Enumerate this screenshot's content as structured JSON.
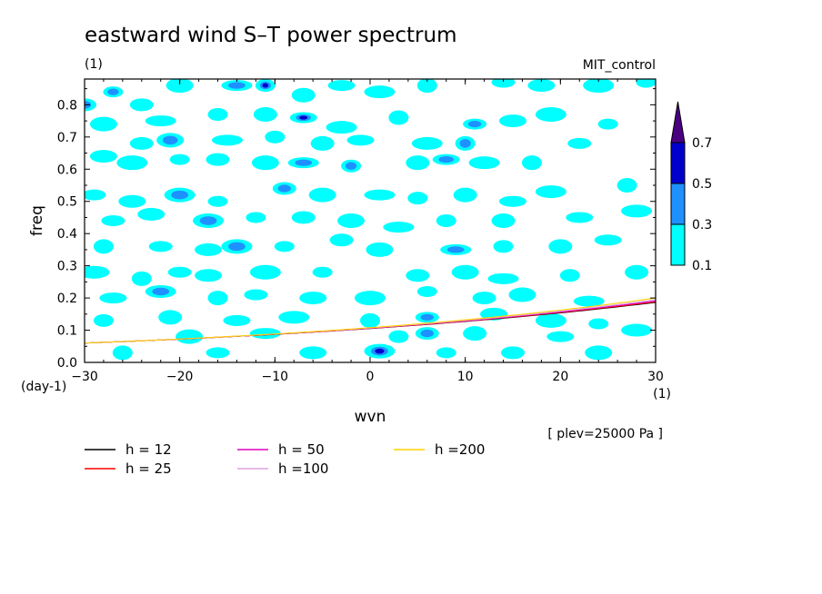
{
  "title": "eastward wind S–T power spectrum",
  "subtitle_left": "(1)",
  "subtitle_right": "MIT_control",
  "plev_note": "[ plev=25000 Pa ]",
  "chart_data": {
    "type": "heatmap",
    "xlabel": "wvn",
    "ylabel": "freq",
    "x_units": "(1)",
    "y_units": "(day-1)",
    "xlim": [
      -30,
      30
    ],
    "ylim": [
      0,
      0.88
    ],
    "xticks": [
      -30,
      -20,
      -10,
      0,
      10,
      20,
      30
    ],
    "xtick_labels": [
      "−30",
      "−20",
      "−10",
      "0",
      "10",
      "20",
      "30"
    ],
    "yticks": [
      0,
      0.1,
      0.2,
      0.3,
      0.4,
      0.5,
      0.6,
      0.7,
      0.8
    ],
    "ytick_labels": [
      "0.0",
      "0.1",
      "0.2",
      "0.3",
      "0.4",
      "0.5",
      "0.6",
      "0.7",
      "0.8"
    ],
    "colorbar": {
      "levels": [
        0.1,
        0.3,
        0.5,
        0.7
      ],
      "labels": [
        "0.1",
        "0.3",
        "0.5",
        "0.7"
      ],
      "colors": [
        "#00ffff",
        "#1e90ff",
        "#0000cd",
        "#4b0082"
      ]
    },
    "dispersion_curves": [
      {
        "name": "h = 12",
        "h": 12,
        "color": "#000000"
      },
      {
        "name": "h = 25",
        "h": 25,
        "color": "#ff0000"
      },
      {
        "name": "h = 50",
        "h": 50,
        "color": "#e000c0"
      },
      {
        "name": "h =100",
        "h": 100,
        "color": "#e0a0e0"
      },
      {
        "name": "h =200",
        "h": 200,
        "color": "#ffd000"
      }
    ],
    "patches": [
      {
        "x": -27,
        "y": 0.84,
        "level": 2
      },
      {
        "x": -24,
        "y": 0.8,
        "level": 1
      },
      {
        "x": -20,
        "y": 0.86,
        "level": 1
      },
      {
        "x": -14,
        "y": 0.86,
        "level": 2
      },
      {
        "x": -11,
        "y": 0.86,
        "level": 3
      },
      {
        "x": -7,
        "y": 0.83,
        "level": 1
      },
      {
        "x": -3,
        "y": 0.86,
        "level": 1
      },
      {
        "x": 1,
        "y": 0.84,
        "level": 1
      },
      {
        "x": 6,
        "y": 0.86,
        "level": 1
      },
      {
        "x": 14,
        "y": 0.87,
        "level": 1
      },
      {
        "x": 18,
        "y": 0.86,
        "level": 1
      },
      {
        "x": 24,
        "y": 0.86,
        "level": 1
      },
      {
        "x": 29,
        "y": 0.87,
        "level": 1
      },
      {
        "x": -30,
        "y": 0.8,
        "level": 2
      },
      {
        "x": -28,
        "y": 0.74,
        "level": 1
      },
      {
        "x": -22,
        "y": 0.75,
        "level": 1
      },
      {
        "x": -16,
        "y": 0.77,
        "level": 1
      },
      {
        "x": -11,
        "y": 0.77,
        "level": 1
      },
      {
        "x": -7,
        "y": 0.76,
        "level": 3
      },
      {
        "x": -3,
        "y": 0.73,
        "level": 1
      },
      {
        "x": 3,
        "y": 0.76,
        "level": 1
      },
      {
        "x": 11,
        "y": 0.74,
        "level": 2
      },
      {
        "x": 15,
        "y": 0.75,
        "level": 1
      },
      {
        "x": 19,
        "y": 0.77,
        "level": 1
      },
      {
        "x": 25,
        "y": 0.74,
        "level": 1
      },
      {
        "x": -24,
        "y": 0.68,
        "level": 1
      },
      {
        "x": -21,
        "y": 0.69,
        "level": 2
      },
      {
        "x": -15,
        "y": 0.69,
        "level": 1
      },
      {
        "x": -10,
        "y": 0.7,
        "level": 1
      },
      {
        "x": -5,
        "y": 0.68,
        "level": 1
      },
      {
        "x": -1,
        "y": 0.69,
        "level": 1
      },
      {
        "x": 6,
        "y": 0.68,
        "level": 1
      },
      {
        "x": 10,
        "y": 0.68,
        "level": 2
      },
      {
        "x": 22,
        "y": 0.68,
        "level": 1
      },
      {
        "x": -28,
        "y": 0.64,
        "level": 1
      },
      {
        "x": -25,
        "y": 0.62,
        "level": 1
      },
      {
        "x": -20,
        "y": 0.63,
        "level": 1
      },
      {
        "x": -16,
        "y": 0.63,
        "level": 1
      },
      {
        "x": -11,
        "y": 0.62,
        "level": 1
      },
      {
        "x": -7,
        "y": 0.62,
        "level": 2
      },
      {
        "x": -2,
        "y": 0.61,
        "level": 2
      },
      {
        "x": 5,
        "y": 0.62,
        "level": 1
      },
      {
        "x": 8,
        "y": 0.63,
        "level": 2
      },
      {
        "x": 12,
        "y": 0.62,
        "level": 1
      },
      {
        "x": 17,
        "y": 0.62,
        "level": 1
      },
      {
        "x": -29,
        "y": 0.52,
        "level": 1
      },
      {
        "x": -25,
        "y": 0.5,
        "level": 1
      },
      {
        "x": -20,
        "y": 0.52,
        "level": 2
      },
      {
        "x": -16,
        "y": 0.5,
        "level": 1
      },
      {
        "x": -9,
        "y": 0.54,
        "level": 2
      },
      {
        "x": -5,
        "y": 0.52,
        "level": 1
      },
      {
        "x": 1,
        "y": 0.52,
        "level": 1
      },
      {
        "x": 5,
        "y": 0.51,
        "level": 1
      },
      {
        "x": 10,
        "y": 0.52,
        "level": 1
      },
      {
        "x": 15,
        "y": 0.5,
        "level": 1
      },
      {
        "x": 19,
        "y": 0.53,
        "level": 1
      },
      {
        "x": 27,
        "y": 0.55,
        "level": 1
      },
      {
        "x": -27,
        "y": 0.44,
        "level": 1
      },
      {
        "x": -23,
        "y": 0.46,
        "level": 1
      },
      {
        "x": -17,
        "y": 0.44,
        "level": 2
      },
      {
        "x": -12,
        "y": 0.45,
        "level": 1
      },
      {
        "x": -7,
        "y": 0.45,
        "level": 1
      },
      {
        "x": -2,
        "y": 0.44,
        "level": 1
      },
      {
        "x": 3,
        "y": 0.42,
        "level": 1
      },
      {
        "x": 8,
        "y": 0.44,
        "level": 1
      },
      {
        "x": 14,
        "y": 0.44,
        "level": 1
      },
      {
        "x": 22,
        "y": 0.45,
        "level": 1
      },
      {
        "x": 28,
        "y": 0.47,
        "level": 1
      },
      {
        "x": -28,
        "y": 0.36,
        "level": 1
      },
      {
        "x": -22,
        "y": 0.36,
        "level": 1
      },
      {
        "x": -17,
        "y": 0.35,
        "level": 1
      },
      {
        "x": -14,
        "y": 0.36,
        "level": 2
      },
      {
        "x": -9,
        "y": 0.36,
        "level": 1
      },
      {
        "x": -3,
        "y": 0.38,
        "level": 1
      },
      {
        "x": 1,
        "y": 0.35,
        "level": 1
      },
      {
        "x": 9,
        "y": 0.35,
        "level": 2
      },
      {
        "x": 14,
        "y": 0.36,
        "level": 1
      },
      {
        "x": 20,
        "y": 0.36,
        "level": 1
      },
      {
        "x": 25,
        "y": 0.38,
        "level": 1
      },
      {
        "x": -29,
        "y": 0.28,
        "level": 1
      },
      {
        "x": -24,
        "y": 0.26,
        "level": 1
      },
      {
        "x": -20,
        "y": 0.28,
        "level": 1
      },
      {
        "x": -17,
        "y": 0.27,
        "level": 1
      },
      {
        "x": -11,
        "y": 0.28,
        "level": 1
      },
      {
        "x": -5,
        "y": 0.28,
        "level": 1
      },
      {
        "x": 5,
        "y": 0.27,
        "level": 1
      },
      {
        "x": 10,
        "y": 0.28,
        "level": 1
      },
      {
        "x": 14,
        "y": 0.26,
        "level": 1
      },
      {
        "x": 21,
        "y": 0.27,
        "level": 1
      },
      {
        "x": 28,
        "y": 0.28,
        "level": 1
      },
      {
        "x": -27,
        "y": 0.2,
        "level": 1
      },
      {
        "x": -22,
        "y": 0.22,
        "level": 2
      },
      {
        "x": -16,
        "y": 0.2,
        "level": 1
      },
      {
        "x": -12,
        "y": 0.21,
        "level": 1
      },
      {
        "x": -6,
        "y": 0.2,
        "level": 1
      },
      {
        "x": 0,
        "y": 0.2,
        "level": 1
      },
      {
        "x": 6,
        "y": 0.22,
        "level": 1
      },
      {
        "x": 12,
        "y": 0.2,
        "level": 1
      },
      {
        "x": 16,
        "y": 0.21,
        "level": 1
      },
      {
        "x": 23,
        "y": 0.19,
        "level": 1
      },
      {
        "x": -28,
        "y": 0.13,
        "level": 1
      },
      {
        "x": -21,
        "y": 0.14,
        "level": 1
      },
      {
        "x": -14,
        "y": 0.13,
        "level": 1
      },
      {
        "x": -8,
        "y": 0.14,
        "level": 1
      },
      {
        "x": 0,
        "y": 0.13,
        "level": 1
      },
      {
        "x": 6,
        "y": 0.14,
        "level": 2
      },
      {
        "x": 13,
        "y": 0.15,
        "level": 1
      },
      {
        "x": 19,
        "y": 0.13,
        "level": 1
      },
      {
        "x": 24,
        "y": 0.12,
        "level": 1
      },
      {
        "x": 6,
        "y": 0.09,
        "level": 2
      },
      {
        "x": -19,
        "y": 0.08,
        "level": 1
      },
      {
        "x": -11,
        "y": 0.09,
        "level": 1
      },
      {
        "x": 3,
        "y": 0.08,
        "level": 1
      },
      {
        "x": 11,
        "y": 0.09,
        "level": 1
      },
      {
        "x": 20,
        "y": 0.08,
        "level": 1
      },
      {
        "x": 28,
        "y": 0.1,
        "level": 1
      },
      {
        "x": -26,
        "y": 0.03,
        "level": 1
      },
      {
        "x": -16,
        "y": 0.03,
        "level": 1
      },
      {
        "x": -6,
        "y": 0.03,
        "level": 1
      },
      {
        "x": 1,
        "y": 0.035,
        "level": 3
      },
      {
        "x": 8,
        "y": 0.03,
        "level": 1
      },
      {
        "x": 15,
        "y": 0.03,
        "level": 1
      },
      {
        "x": 24,
        "y": 0.03,
        "level": 1
      }
    ]
  }
}
